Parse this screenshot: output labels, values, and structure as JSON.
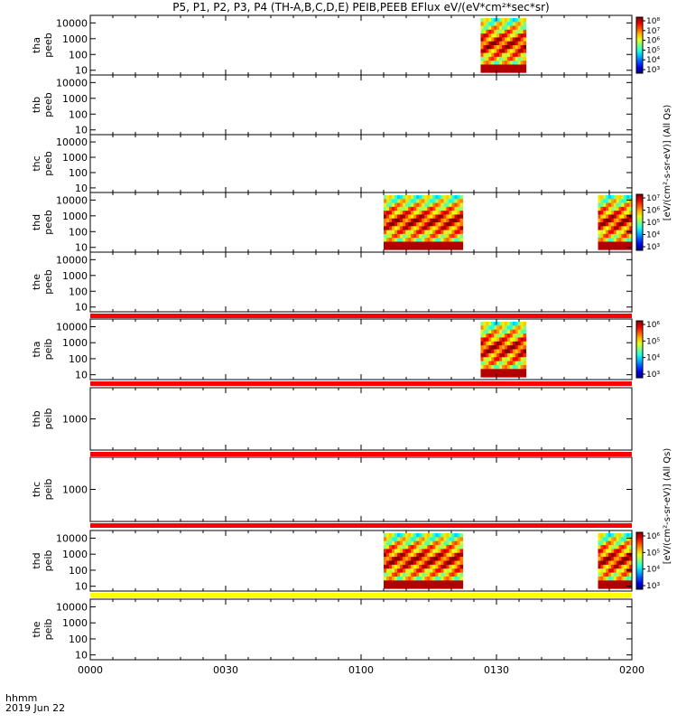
{
  "title": "P5, P1, P2, P3, P4 (TH-A,B,C,D,E) PEIB,PEEB EFlux eV/(eV*cm²*sec*sr)",
  "x_label_line1": "hhmm",
  "x_label_line2": "2019 Jun 22",
  "cbar_titles": {
    "peeb_group": "[eV/(cm²-s-sr-eV)] (All Qs)",
    "peib_group": "[eV/(cm²-s-sr-eV)] (All Qs)"
  },
  "chart_data": {
    "type": "heatmap",
    "x_ticks": [
      "0000",
      "0030",
      "0100",
      "0130",
      "0200"
    ],
    "x_range_minutes": [
      0,
      120
    ],
    "panels": [
      {
        "id": "tha_peeb",
        "ylabel": [
          "tha",
          "peeb"
        ],
        "yscale": "log",
        "ylim": [
          5,
          30000
        ],
        "y_ticks": [
          "10",
          "100",
          "1000",
          "10000"
        ],
        "data_segments": [
          {
            "start_min": 86.5,
            "end_min": 96.5
          }
        ],
        "colorbar": {
          "ticks": [
            "10⁸",
            "10⁷",
            "10⁶",
            "10⁵",
            "10⁴",
            "10³"
          ],
          "log_range": [
            3,
            8
          ]
        },
        "flags": []
      },
      {
        "id": "thb_peeb",
        "ylabel": [
          "thb",
          "peeb"
        ],
        "yscale": "log",
        "ylim": [
          5,
          30000
        ],
        "y_ticks": [
          "10",
          "100",
          "1000",
          "10000"
        ],
        "data_segments": [],
        "flags": []
      },
      {
        "id": "thc_peeb",
        "ylabel": [
          "thc",
          "peeb"
        ],
        "yscale": "log",
        "ylim": [
          5,
          30000
        ],
        "y_ticks": [
          "10",
          "100",
          "1000",
          "10000"
        ],
        "data_segments": [],
        "flags": []
      },
      {
        "id": "thd_peeb",
        "ylabel": [
          "thd",
          "peeb"
        ],
        "yscale": "log",
        "ylim": [
          5,
          30000
        ],
        "y_ticks": [
          "10",
          "100",
          "1000",
          "10000"
        ],
        "data_segments": [
          {
            "start_min": 65,
            "end_min": 82.5
          },
          {
            "start_min": 112.5,
            "end_min": 120
          }
        ],
        "colorbar": {
          "ticks": [
            "10⁷",
            "10⁶",
            "10⁵",
            "10⁴",
            "10³"
          ],
          "log_range": [
            3,
            7.5
          ]
        },
        "flags": []
      },
      {
        "id": "the_peeb",
        "ylabel": [
          "the",
          "peeb"
        ],
        "yscale": "log",
        "ylim": [
          5,
          30000
        ],
        "y_ticks": [
          "10",
          "100",
          "1000",
          "10000"
        ],
        "data_segments": [],
        "flags": [
          {
            "color": "#ff0000",
            "position": "below"
          }
        ]
      },
      {
        "id": "tha_peib",
        "ylabel": [
          "tha",
          "peib"
        ],
        "yscale": "log",
        "ylim": [
          5,
          30000
        ],
        "y_ticks": [
          "10",
          "100",
          "1000",
          "10000"
        ],
        "data_segments": [
          {
            "start_min": 86.5,
            "end_min": 96.5
          }
        ],
        "colorbar": {
          "ticks": [
            "10⁶",
            "10⁵",
            "10⁴",
            "10³"
          ],
          "log_range": [
            3,
            6
          ]
        },
        "flags": [
          {
            "color": "#ff0000",
            "position": "below"
          }
        ]
      },
      {
        "id": "thb_peib",
        "ylabel": [
          "thb",
          "peib"
        ],
        "yscale": "log",
        "ylim": [
          100,
          10000
        ],
        "y_ticks": [
          "1000"
        ],
        "data_segments": [],
        "flags": [
          {
            "color": "#ff0000",
            "position": "below"
          }
        ]
      },
      {
        "id": "thc_peib",
        "ylabel": [
          "thc",
          "peib"
        ],
        "yscale": "log",
        "ylim": [
          100,
          10000
        ],
        "y_ticks": [
          "1000"
        ],
        "data_segments": [],
        "flags": [
          {
            "color": "#ff0000",
            "position": "below"
          }
        ]
      },
      {
        "id": "thd_peib",
        "ylabel": [
          "thd",
          "peib"
        ],
        "yscale": "log",
        "ylim": [
          5,
          30000
        ],
        "y_ticks": [
          "10",
          "100",
          "1000",
          "10000"
        ],
        "data_segments": [
          {
            "start_min": 65,
            "end_min": 82.5
          },
          {
            "start_min": 112.5,
            "end_min": 120
          }
        ],
        "colorbar": {
          "ticks": [
            "10⁶",
            "10⁵",
            "10⁴",
            "10³"
          ],
          "log_range": [
            3,
            6
          ]
        },
        "flags": [
          {
            "color": "#ffff00",
            "position": "below"
          }
        ]
      },
      {
        "id": "the_peib",
        "ylabel": [
          "the",
          "peib"
        ],
        "yscale": "log",
        "ylim": [
          5,
          30000
        ],
        "y_ticks": [
          "10",
          "100",
          "1000",
          "10000"
        ],
        "data_segments": [],
        "flags": []
      }
    ]
  }
}
